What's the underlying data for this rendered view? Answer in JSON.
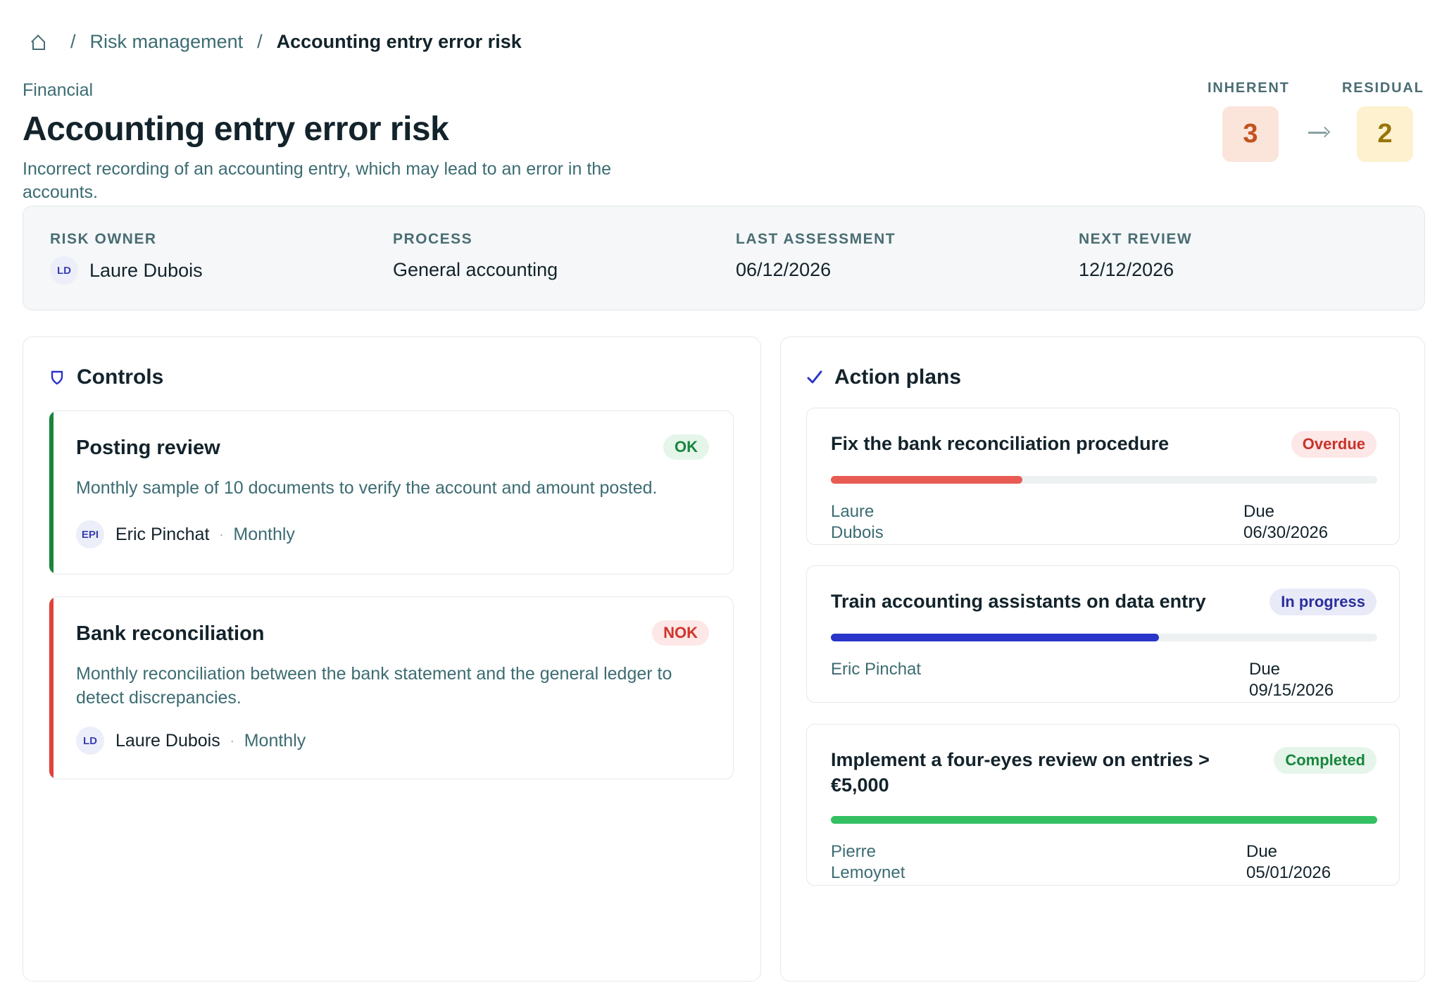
{
  "breadcrumb": {
    "parent": "Risk management",
    "current": "Accounting entry error risk"
  },
  "risk": {
    "category": "Financial",
    "title": "Accounting entry error risk",
    "description": "Incorrect recording of an accounting entry, which may lead to an error in the accounts."
  },
  "scores": {
    "inherent_label": "INHERENT",
    "inherent": "3",
    "residual_label": "RESIDUAL",
    "residual": "2",
    "colors": {
      "inherent_bg": "#fbe4da",
      "inherent_fg": "#c2531c",
      "residual_bg": "#fdf1cf",
      "residual_fg": "#98750a"
    }
  },
  "info": {
    "owner_label": "RISK OWNER",
    "owner_initials": "LD",
    "owner_name": "Laure Dubois",
    "process_label": "PROCESS",
    "process": "General accounting",
    "last_label": "LAST ASSESSMENT",
    "last": "06/12/2026",
    "next_label": "NEXT REVIEW",
    "next": "12/12/2026"
  },
  "controls": {
    "title": "Controls",
    "icon": "shield-icon",
    "items": [
      {
        "title": "Posting review",
        "status": "OK",
        "status_color": "#18853c",
        "description": "Monthly sample of 10 documents to verify the account and amount posted.",
        "owner_initials": "EPI",
        "owner": "Eric Pinchat",
        "separator": "·",
        "frequency": "Monthly"
      },
      {
        "title": "Bank reconciliation",
        "status": "NOK",
        "status_color": "#e0423a",
        "description": "Monthly reconciliation between the bank statement and the general ledger to detect discrepancies.",
        "owner_initials": "LD",
        "owner": "Laure Dubois",
        "separator": "·",
        "frequency": "Monthly"
      }
    ]
  },
  "action_plans": {
    "title": "Action plans",
    "icon": "check-icon",
    "items": [
      {
        "title": "Fix the bank reconciliation procedure",
        "status": "Overdue",
        "progress": 0.35,
        "progress_color": "#e85b54",
        "owner": "Laure Dubois",
        "due": "Due 06/30/2026"
      },
      {
        "title": "Train accounting assistants on data entry",
        "status": "In progress",
        "progress": 0.6,
        "progress_color": "#2a35c9",
        "owner": "Eric Pinchat",
        "due": "Due 09/15/2026"
      },
      {
        "title": "Implement a four-eyes review on entries > €5,000",
        "status": "Completed",
        "progress": 1.0,
        "progress_color": "#34c063",
        "owner": "Pierre Lemoynet",
        "due": "Due 05/01/2026"
      }
    ]
  }
}
